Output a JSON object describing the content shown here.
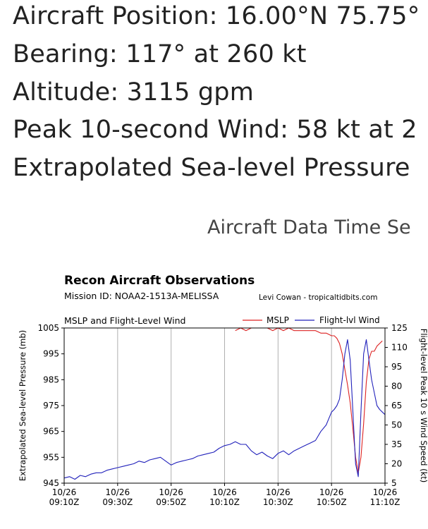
{
  "info": {
    "position": "Aircraft Position: 16.00°N 75.75°",
    "bearing": "Bearing: 117° at 260 kt",
    "altitude": "Altitude: 3115 gpm",
    "peak_wind": "Peak 10-second Wind: 58 kt at 2",
    "pressure": "Extrapolated Sea-level Pressure"
  },
  "section_title": "Aircraft Data Time Se",
  "chart_header": {
    "title": "Recon Aircraft Observations",
    "mission": "Mission ID: NOAA2-1513A-MELISSA",
    "credit": "Levi Cowan - tropicaltidbits.com",
    "subtitle": "MSLP and Flight-Level Wind"
  },
  "chart_data": {
    "type": "line",
    "x_unit": "minutes after 10/26 09:10Z",
    "xlim": [
      0,
      120
    ],
    "x_ticks": [
      {
        "value": 0,
        "date": "10/26",
        "time": "09:10Z"
      },
      {
        "value": 20,
        "date": "10/26",
        "time": "09:30Z"
      },
      {
        "value": 40,
        "date": "10/26",
        "time": "09:50Z"
      },
      {
        "value": 60,
        "date": "10/26",
        "time": "10:10Z"
      },
      {
        "value": 80,
        "date": "10/26",
        "time": "10:30Z"
      },
      {
        "value": 100,
        "date": "10/26",
        "time": "10:50Z"
      },
      {
        "value": 120,
        "date": "10/26",
        "time": "11:10Z"
      }
    ],
    "y_left": {
      "label": "Extrapolated Sea-level Pressure (mb)",
      "lim": [
        945,
        1005
      ],
      "ticks": [
        945,
        955,
        965,
        975,
        985,
        995,
        1005
      ]
    },
    "y_right": {
      "label": "Flight-level Peak 10 s Wind Speed (kt)",
      "lim": [
        5,
        125
      ],
      "ticks": [
        5,
        20,
        35,
        50,
        65,
        80,
        95,
        110,
        125
      ]
    },
    "grid": "vertical",
    "legend": "top-right",
    "series": [
      {
        "name": "MSLP",
        "axis": "left",
        "color": "#dd2222",
        "x": [
          64,
          66,
          68,
          70,
          72,
          74,
          76,
          78,
          80,
          82,
          84,
          86,
          88,
          90,
          92,
          94,
          96,
          98,
          100,
          101,
          102,
          103,
          104,
          105,
          106,
          107,
          108,
          109,
          110,
          111,
          112,
          113,
          114,
          115,
          116,
          117,
          118,
          119
        ],
        "y": [
          1004,
          1005,
          1004,
          1005,
          1005,
          1005,
          1005,
          1004,
          1005,
          1004,
          1005,
          1004,
          1004,
          1004,
          1004,
          1004,
          1003,
          1003,
          1002,
          1002,
          1001,
          999,
          995,
          989,
          983,
          976,
          966,
          955,
          949,
          955,
          968,
          984,
          993,
          996,
          996,
          998,
          999,
          1000
        ]
      },
      {
        "name": "Flight-lvl Wind",
        "axis": "right",
        "color": "#2222bb",
        "x": [
          0,
          2,
          4,
          6,
          8,
          10,
          12,
          14,
          16,
          18,
          20,
          22,
          24,
          26,
          28,
          30,
          32,
          34,
          36,
          38,
          40,
          42,
          44,
          46,
          48,
          50,
          52,
          54,
          56,
          58,
          60,
          62,
          64,
          66,
          68,
          70,
          72,
          74,
          76,
          78,
          80,
          82,
          84,
          86,
          88,
          90,
          92,
          94,
          96,
          98,
          99,
          100,
          101,
          102,
          103,
          104,
          105,
          106,
          107,
          108,
          109,
          110,
          111,
          112,
          113,
          114,
          115,
          116,
          117,
          118,
          119,
          120
        ],
        "y": [
          9,
          10,
          8,
          11,
          10,
          12,
          13,
          13,
          15,
          16,
          17,
          18,
          19,
          20,
          22,
          21,
          23,
          24,
          25,
          22,
          19,
          21,
          22,
          23,
          24,
          26,
          27,
          28,
          29,
          32,
          34,
          35,
          37,
          35,
          35,
          30,
          27,
          29,
          26,
          24,
          28,
          30,
          27,
          30,
          32,
          34,
          36,
          38,
          45,
          50,
          55,
          60,
          62,
          65,
          70,
          85,
          105,
          116,
          100,
          60,
          20,
          10,
          60,
          105,
          116,
          100,
          85,
          75,
          65,
          62,
          60,
          58
        ]
      }
    ]
  }
}
